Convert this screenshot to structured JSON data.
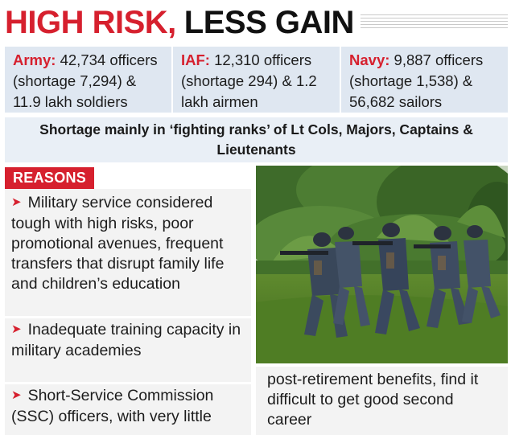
{
  "headline": {
    "part1": "HIGH RISK,",
    "part2": "LESS GAIN"
  },
  "stats": [
    {
      "label": "Army:",
      "text": "42,734 officers (shortage 7,294) & 11.9 lakh soldiers"
    },
    {
      "label": "IAF:",
      "text": "12,310 officers (shortage 294) & 1.2 lakh airmen"
    },
    {
      "label": "Navy:",
      "text": "9,887 officers (shortage 1,538) & 56,682 sailors"
    }
  ],
  "shortage_note": "Shortage mainly in ‘fighting ranks’ of Lt Cols, Majors, Captains & Lieutenants",
  "reasons": {
    "title": "REASONS",
    "items": [
      "Military service considered tough with high risks, poor promotional avenues, frequent transfers that disrupt family life and children’s education",
      "Inadequate training capacity in military academies",
      "Short-Service Commission (SSC) officers, with very little"
    ],
    "continuation": "post-retirement benefits, find it difficult to get good second career"
  },
  "colors": {
    "accent": "#d6202e",
    "panel_blue": "#dfe7f1",
    "panel_grey": "#f3f3f3"
  }
}
